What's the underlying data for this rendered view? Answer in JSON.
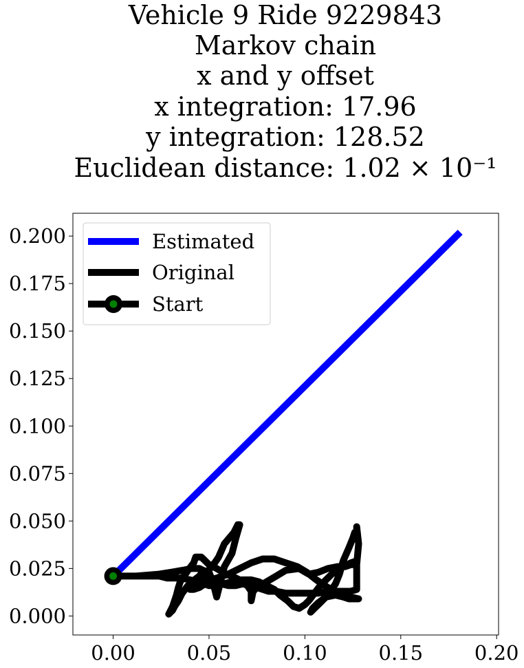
{
  "chart_data": {
    "type": "line",
    "title_lines": [
      "Vehicle 9 Ride 9229843",
      "Markov chain",
      "x and y offset",
      "x integration: 17.96",
      "y integration: 128.52",
      "Euclidean distance: 1.02 × 10⁻¹"
    ],
    "xlabel": "",
    "ylabel": "",
    "xlim": [
      -0.021,
      0.201
    ],
    "ylim": [
      -0.01,
      0.212
    ],
    "x_ticks": [
      "0.00",
      "0.05",
      "0.10",
      "0.15",
      "0.20"
    ],
    "x_tick_values": [
      0.0,
      0.05,
      0.1,
      0.15,
      0.2
    ],
    "y_ticks": [
      "0.000",
      "0.025",
      "0.050",
      "0.075",
      "0.100",
      "0.125",
      "0.150",
      "0.175",
      "0.200"
    ],
    "y_tick_values": [
      0.0,
      0.025,
      0.05,
      0.075,
      0.1,
      0.125,
      0.15,
      0.175,
      0.2
    ],
    "grid": false,
    "legend_position": "top-left",
    "legend": [
      "Estimated",
      "Original",
      "Start"
    ],
    "colors": {
      "estimated": "#0000ff",
      "original": "#000000",
      "start_marker_fill": "#008000",
      "start_marker_edge": "#000000"
    },
    "series": [
      {
        "name": "Estimated",
        "x": [
          0.0,
          0.181
        ],
        "y": [
          0.021,
          0.202
        ]
      },
      {
        "name": "Original",
        "x": [
          0.0,
          0.012,
          0.024,
          0.03,
          0.036,
          0.041,
          0.045,
          0.047,
          0.044,
          0.049,
          0.052,
          0.053,
          0.055,
          0.058,
          0.063,
          0.065,
          0.066,
          0.064,
          0.062,
          0.058,
          0.056,
          0.054,
          0.052,
          0.05,
          0.047,
          0.045,
          0.041,
          0.039,
          0.04,
          0.042,
          0.045,
          0.048,
          0.052,
          0.056,
          0.06,
          0.064,
          0.068,
          0.07,
          0.072,
          0.072,
          0.073,
          0.075,
          0.08,
          0.085,
          0.09,
          0.097,
          0.102,
          0.107,
          0.112,
          0.117,
          0.121,
          0.124,
          0.127,
          0.128,
          0.127,
          0.127,
          0.127,
          0.126,
          0.125,
          0.123,
          0.12,
          0.118,
          0.116,
          0.112,
          0.108,
          0.105,
          0.103,
          0.104,
          0.107,
          0.111,
          0.116,
          0.12,
          0.123,
          0.126,
          0.128,
          0.124,
          0.118,
          0.112,
          0.106,
          0.101,
          0.096,
          0.09,
          0.084,
          0.078,
          0.072,
          0.066,
          0.06,
          0.054,
          0.048,
          0.044,
          0.039,
          0.036,
          0.034,
          0.032,
          0.031,
          0.03,
          0.029,
          0.03,
          0.031,
          0.032,
          0.033,
          0.034,
          0.035,
          0.037,
          0.039,
          0.042,
          0.043,
          0.046,
          0.047,
          0.05,
          0.054,
          0.059,
          0.064,
          0.068,
          0.072,
          0.075,
          0.078,
          0.081,
          0.085,
          0.09,
          0.095,
          0.099,
          0.103,
          0.107,
          0.111,
          0.115,
          0.119,
          0.124,
          0.127,
          0.127,
          0.127,
          0.124,
          0.12,
          0.117,
          0.114,
          0.112,
          0.11,
          0.108,
          0.105,
          0.102,
          0.1,
          0.097,
          0.094,
          0.091,
          0.087,
          0.084,
          0.08,
          0.076,
          0.072,
          0.067,
          0.062,
          0.058,
          0.054,
          0.05,
          0.047,
          0.044,
          0.04,
          0.036,
          0.032,
          0.028,
          0.024,
          0.02,
          0.016,
          0.012,
          0.008,
          0.004,
          0.0
        ],
        "y": [
          0.021,
          0.021,
          0.022,
          0.023,
          0.024,
          0.025,
          0.025,
          0.024,
          0.016,
          0.023,
          0.027,
          0.028,
          0.031,
          0.038,
          0.044,
          0.048,
          0.048,
          0.041,
          0.033,
          0.026,
          0.018,
          0.01,
          0.018,
          0.023,
          0.024,
          0.021,
          0.018,
          0.015,
          0.014,
          0.014,
          0.015,
          0.017,
          0.018,
          0.017,
          0.016,
          0.016,
          0.017,
          0.016,
          0.013,
          0.008,
          0.013,
          0.015,
          0.018,
          0.021,
          0.024,
          0.025,
          0.022,
          0.023,
          0.025,
          0.026,
          0.026,
          0.027,
          0.027,
          0.038,
          0.047,
          0.046,
          0.045,
          0.044,
          0.041,
          0.036,
          0.029,
          0.022,
          0.017,
          0.011,
          0.007,
          0.004,
          0.002,
          0.004,
          0.007,
          0.01,
          0.011,
          0.01,
          0.009,
          0.009,
          0.009,
          0.01,
          0.012,
          0.015,
          0.019,
          0.023,
          0.026,
          0.028,
          0.03,
          0.03,
          0.028,
          0.025,
          0.022,
          0.02,
          0.018,
          0.017,
          0.016,
          0.012,
          0.008,
          0.005,
          0.003,
          0.002,
          0.001,
          0.003,
          0.005,
          0.008,
          0.011,
          0.015,
          0.018,
          0.021,
          0.024,
          0.028,
          0.031,
          0.031,
          0.03,
          0.027,
          0.025,
          0.022,
          0.02,
          0.018,
          0.016,
          0.015,
          0.014,
          0.013,
          0.013,
          0.012,
          0.012,
          0.012,
          0.012,
          0.012,
          0.013,
          0.013,
          0.013,
          0.013,
          0.014,
          0.02,
          0.029,
          0.028,
          0.026,
          0.024,
          0.022,
          0.02,
          0.018,
          0.016,
          0.012,
          0.008,
          0.006,
          0.004,
          0.005,
          0.008,
          0.011,
          0.014,
          0.016,
          0.018,
          0.019,
          0.019,
          0.018,
          0.017,
          0.016,
          0.016,
          0.017,
          0.018,
          0.019,
          0.02,
          0.02,
          0.02,
          0.021,
          0.021,
          0.021,
          0.021,
          0.021,
          0.021,
          0.021
        ]
      },
      {
        "name": "Start",
        "x": [
          0.0
        ],
        "y": [
          0.021
        ]
      }
    ]
  }
}
